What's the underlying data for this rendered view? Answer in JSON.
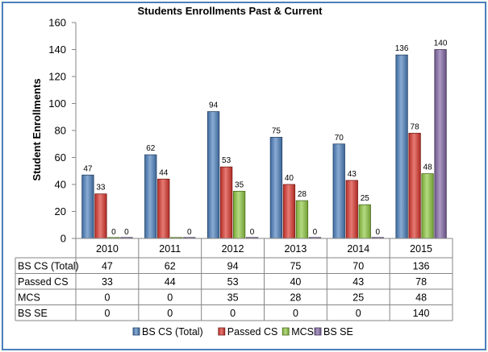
{
  "chart_data": {
    "type": "bar",
    "title": "Students Enrollments Past & Current",
    "ylabel": "Student Enrollments",
    "xlabel": "",
    "ylim": [
      0,
      160
    ],
    "yticks": [
      "0",
      "20",
      "40",
      "60",
      "80",
      "100",
      "120",
      "140",
      "160"
    ],
    "categories": [
      "2010",
      "2011",
      "2012",
      "2013",
      "2014",
      "2015"
    ],
    "series": [
      {
        "name": "BS CS (Total)",
        "values": [
          47,
          62,
          94,
          75,
          70,
          136
        ],
        "color": "#4a7ebb",
        "labels": [
          "47",
          "62",
          "94",
          "75",
          "70",
          "136"
        ]
      },
      {
        "name": "Passed CS",
        "values": [
          33,
          44,
          53,
          40,
          43,
          78
        ],
        "color": "#d9342b",
        "labels": [
          "33",
          "44",
          "53",
          "40",
          "43",
          "78"
        ]
      },
      {
        "name": "MCS",
        "values": [
          0,
          0,
          35,
          28,
          25,
          48
        ],
        "color": "#8cc63e",
        "labels": [
          "0",
          "",
          "35",
          "28",
          "25",
          "48"
        ]
      },
      {
        "name": "BS SE",
        "values": [
          0,
          0,
          0,
          0,
          0,
          140
        ],
        "color": "#8064a2",
        "labels": [
          "0",
          "0",
          "0",
          "0",
          "0",
          "140"
        ]
      }
    ],
    "table": {
      "rows": [
        {
          "label": "BS CS (Total)",
          "cells": [
            "47",
            "62",
            "94",
            "75",
            "70",
            "136"
          ]
        },
        {
          "label": "Passed CS",
          "cells": [
            "33",
            "44",
            "53",
            "40",
            "43",
            "78"
          ]
        },
        {
          "label": "MCS",
          "cells": [
            "0",
            "0",
            "35",
            "28",
            "25",
            "48"
          ]
        },
        {
          "label": "BS SE",
          "cells": [
            "0",
            "0",
            "0",
            "0",
            "0",
            "140"
          ]
        }
      ]
    },
    "legend": {
      "position": "bottom",
      "items": [
        "BS CS (Total)",
        "Passed CS",
        "MCS",
        "BS SE"
      ]
    },
    "grid": false
  }
}
